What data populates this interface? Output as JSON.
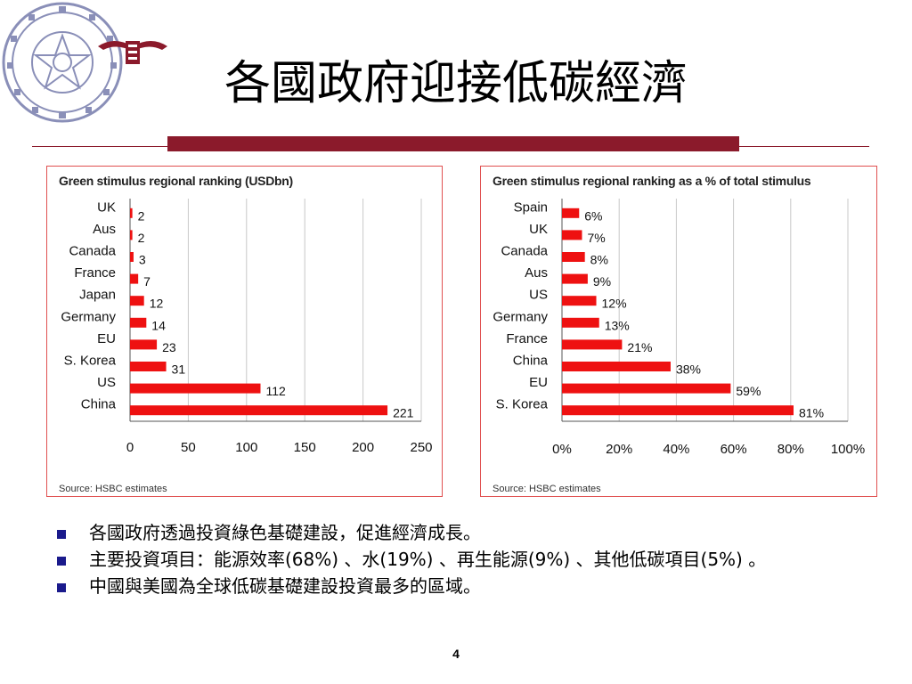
{
  "slide": {
    "title": "各國政府迎接低碳經濟",
    "page_number": "4",
    "accent_color": "#8b1a2b",
    "bullet_color": "#1a1a8c",
    "bullets": [
      "各國政府透過投資綠色基礎建設，促進經濟成長。",
      "主要投資項目：能源效率(68%) 、水(19%) 、再生能源(9%) 、其他低碳項目(5%) 。",
      "中國與美國為全球低碳基礎建設投資最多的區域。"
    ]
  },
  "logos": {
    "seal_icon": "university-seal-icon",
    "mark_icon": "university-mark-icon"
  },
  "chart_data": [
    {
      "type": "bar",
      "orientation": "horizontal",
      "title": "Green stimulus regional ranking (USDbn)",
      "source": "Source: HSBC estimates",
      "categories": [
        "UK",
        "Aus",
        "Canada",
        "France",
        "Japan",
        "Germany",
        "EU",
        "S. Korea",
        "US",
        "China"
      ],
      "values": [
        2,
        2,
        3,
        7,
        12,
        14,
        23,
        31,
        112,
        221
      ],
      "value_labels": [
        "2",
        "2",
        "3",
        "7",
        "12",
        "14",
        "23",
        "31",
        "112",
        "221"
      ],
      "xlim": [
        0,
        250
      ],
      "xticks": [
        0,
        50,
        100,
        150,
        200,
        250
      ],
      "xtick_labels": [
        "0",
        "50",
        "100",
        "150",
        "200",
        "250"
      ],
      "bar_color": "#ee1111",
      "grid": true
    },
    {
      "type": "bar",
      "orientation": "horizontal",
      "title": "Green stimulus regional ranking as a % of total stimulus",
      "source": "Source: HSBC estimates",
      "categories": [
        "Spain",
        "UK",
        "Canada",
        "Aus",
        "US",
        "Germany",
        "France",
        "China",
        "EU",
        "S. Korea"
      ],
      "values": [
        6,
        7,
        8,
        9,
        12,
        13,
        21,
        38,
        59,
        81
      ],
      "value_labels": [
        "6%",
        "7%",
        "8%",
        "9%",
        "12%",
        "13%",
        "21%",
        "38%",
        "59%",
        "81%"
      ],
      "xlim": [
        0,
        100
      ],
      "xticks": [
        0,
        20,
        40,
        60,
        80,
        100
      ],
      "xtick_labels": [
        "0%",
        "20%",
        "40%",
        "60%",
        "80%",
        "100%"
      ],
      "bar_color": "#ee1111",
      "grid": true
    }
  ]
}
